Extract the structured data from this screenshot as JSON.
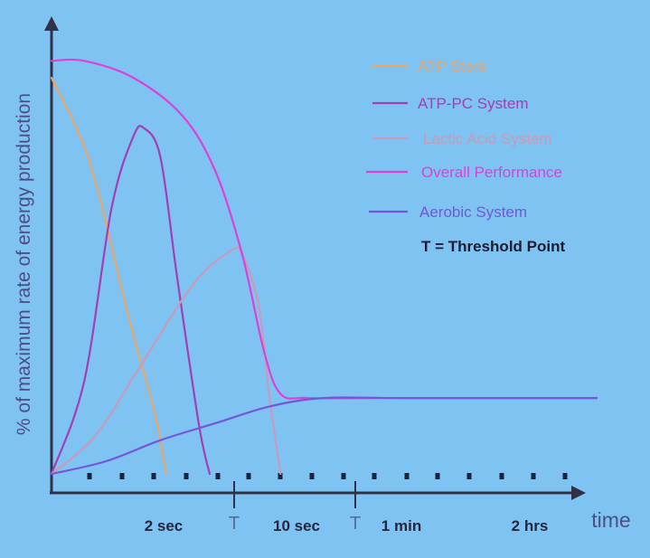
{
  "chart_data": {
    "type": "line",
    "title": "",
    "ylabel": "% of maximum rate of energy production",
    "xlabel": "time",
    "x_ticks": [
      "2 sec",
      "10 sec",
      "1 min",
      "2 hrs"
    ],
    "threshold_marker": "T",
    "note": "T = Threshold Point",
    "legend_position": "top-right",
    "grid": false,
    "x_range": [
      0,
      100
    ],
    "y_range": [
      0,
      100
    ],
    "series": [
      {
        "name": "ATP Store",
        "color": "#e8a66a",
        "points": [
          [
            0,
            94
          ],
          [
            7,
            74
          ],
          [
            14,
            38
          ],
          [
            19,
            14
          ],
          [
            21,
            0
          ]
        ]
      },
      {
        "name": "ATP-PC System",
        "color": "#a23fb3",
        "points": [
          [
            0,
            0
          ],
          [
            6,
            22
          ],
          [
            11,
            63
          ],
          [
            15,
            80
          ],
          [
            17,
            82
          ],
          [
            20,
            75
          ],
          [
            23,
            47
          ],
          [
            27,
            12
          ],
          [
            29,
            0
          ]
        ]
      },
      {
        "name": "Lactic Acid System",
        "color": "#c69bbb",
        "points": [
          [
            0,
            0
          ],
          [
            8,
            9
          ],
          [
            16,
            25
          ],
          [
            26,
            45
          ],
          [
            33,
            53
          ],
          [
            35,
            52
          ],
          [
            38,
            40
          ],
          [
            40,
            18
          ],
          [
            42,
            0
          ]
        ]
      },
      {
        "name": "Overall Performance",
        "color": "#dd41d8",
        "points": [
          [
            0,
            98
          ],
          [
            6,
            98
          ],
          [
            15,
            94
          ],
          [
            24,
            85
          ],
          [
            30,
            72
          ],
          [
            35,
            52
          ],
          [
            39,
            29
          ],
          [
            42,
            19
          ],
          [
            47,
            18
          ],
          [
            60,
            18
          ],
          [
            75,
            18
          ],
          [
            100,
            18
          ]
        ]
      },
      {
        "name": "Aerobic System",
        "color": "#7357d9",
        "points": [
          [
            0,
            0
          ],
          [
            10,
            3
          ],
          [
            20,
            8
          ],
          [
            30,
            12
          ],
          [
            40,
            16
          ],
          [
            50,
            18
          ],
          [
            65,
            18
          ],
          [
            100,
            18
          ]
        ]
      }
    ]
  }
}
